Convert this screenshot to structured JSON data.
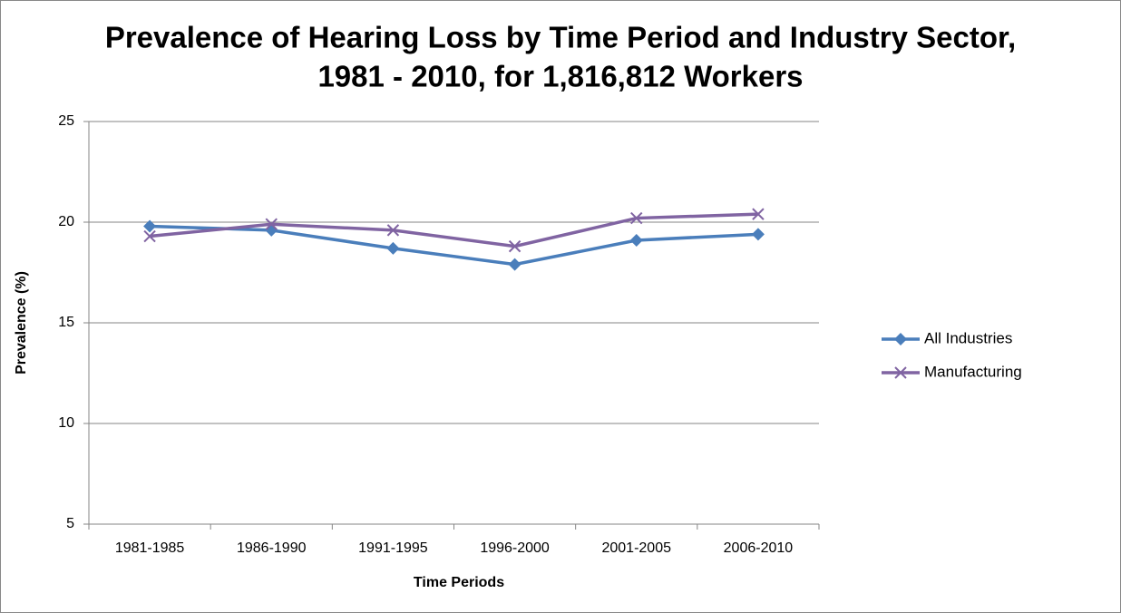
{
  "chart_data": {
    "type": "line",
    "title": [
      "Prevalence of Hearing Loss by Time Period and Industry Sector,",
      "1981 - 2010, for 1,816,812 Workers"
    ],
    "x_label": "Time Periods",
    "y_label": "Prevalence (%)",
    "categories": [
      "1981-1985",
      "1986-1990",
      "1991-1995",
      "1996-2000",
      "2001-2005",
      "2006-2010"
    ],
    "series": [
      {
        "name": "All Industries",
        "color": "#4a7ebb",
        "marker": "diamond",
        "values": [
          19.8,
          19.6,
          18.7,
          17.9,
          19.1,
          19.4
        ]
      },
      {
        "name": "Manufacturing",
        "color": "#8064a2",
        "marker": "x",
        "values": [
          19.3,
          19.9,
          19.6,
          18.8,
          20.2,
          20.4
        ]
      }
    ],
    "ylim": [
      5,
      25
    ],
    "yticks": [
      5,
      10,
      15,
      20,
      25
    ],
    "grid": true,
    "legend": "right"
  }
}
